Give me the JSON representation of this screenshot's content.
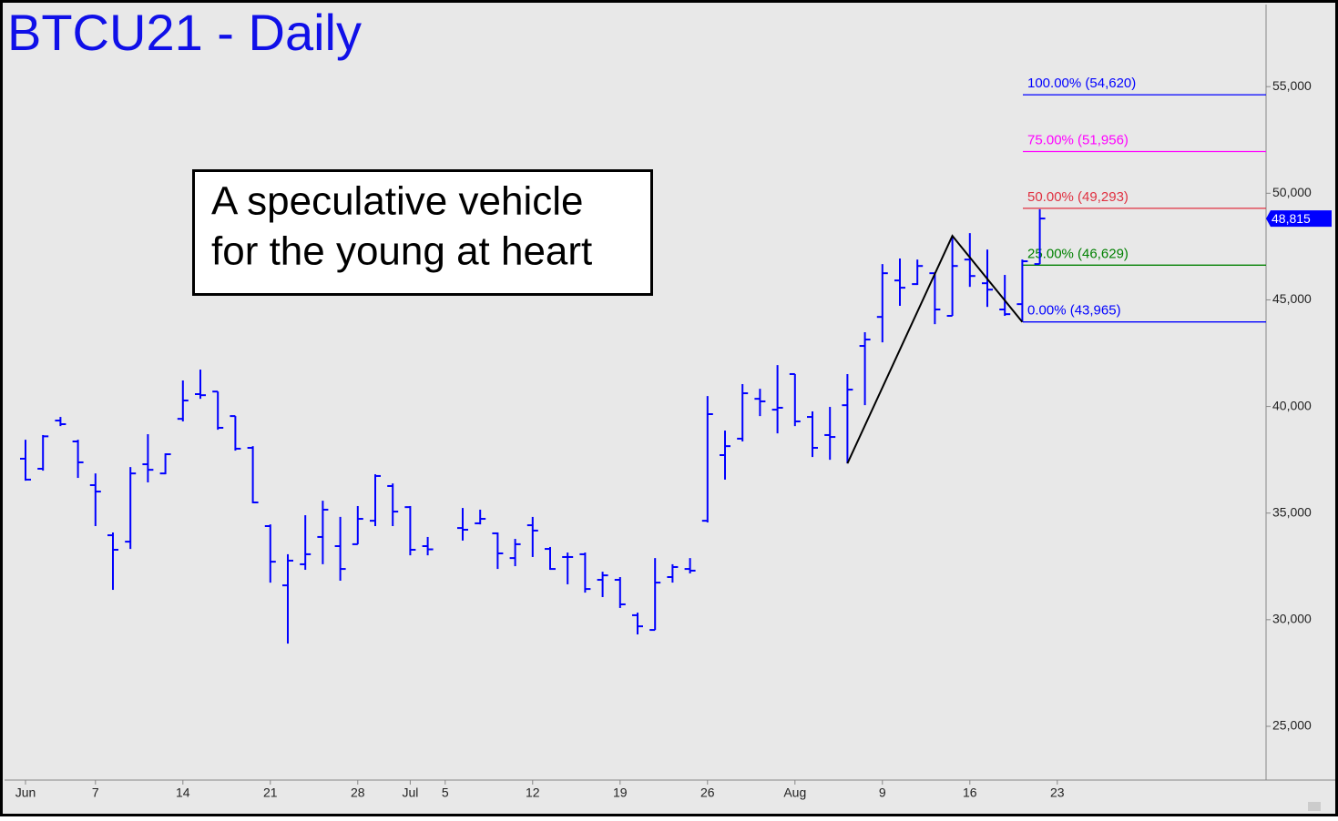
{
  "chart_data": {
    "type": "ohlc",
    "title": "BTCU21 - Daily",
    "annotation": [
      "A speculative vehicle",
      "for the young at heart"
    ],
    "color": "#0000ff",
    "categories": [
      "Jun",
      null,
      null,
      null,
      "7",
      null,
      null,
      null,
      null,
      "14",
      null,
      null,
      null,
      null,
      "21",
      null,
      null,
      null,
      null,
      "28",
      null,
      null,
      "Jul",
      null,
      "5",
      null,
      null,
      null,
      null,
      "12",
      null,
      null,
      null,
      null,
      "19",
      null,
      null,
      null,
      null,
      "26",
      null,
      null,
      null,
      null,
      "Aug",
      null,
      null,
      null,
      null,
      "9",
      null,
      null,
      null,
      null,
      "16",
      null,
      null,
      null,
      null,
      "23"
    ],
    "open": [
      37550,
      37080,
      39340,
      38360,
      36310,
      33960,
      33660,
      37290,
      36860,
      39420,
      40580,
      40700,
      39550,
      38060,
      34390,
      31610,
      32600,
      33880,
      33450,
      33540,
      34640,
      36270,
      35280,
      33450,
      null,
      34300,
      34520,
      34050,
      32890,
      34430,
      33320,
      32940,
      33070,
      31870,
      31870,
      30210,
      29520,
      32000,
      32380,
      34640,
      37720,
      38490,
      40360,
      39850,
      41520,
      39510,
      38660,
      40060,
      42840,
      44200,
      45910,
      45740,
      46250,
      44250,
      46890,
      45780,
      44550,
      44800,
      46680,
      null
    ],
    "high": [
      38440,
      38660,
      39510,
      38440,
      36860,
      34090,
      37160,
      38700,
      37800,
      41220,
      41730,
      40700,
      39550,
      38140,
      34470,
      33070,
      34900,
      35580,
      34820,
      35330,
      36820,
      36390,
      35330,
      33880,
      null,
      35240,
      35160,
      34090,
      33790,
      34820,
      33410,
      33150,
      33150,
      32250,
      32000,
      30330,
      32890,
      32600,
      32890,
      40490,
      38870,
      41050,
      40830,
      41940,
      41520,
      39770,
      39980,
      41520,
      43480,
      46680,
      46940,
      46890,
      46250,
      48000,
      48130,
      47360,
      46170,
      46890,
      49250,
      null
    ],
    "low": [
      36520,
      36990,
      39080,
      36650,
      34390,
      31400,
      33320,
      36440,
      36820,
      39300,
      40360,
      38910,
      37930,
      35460,
      31740,
      28880,
      32340,
      32600,
      31830,
      33540,
      34390,
      34390,
      33020,
      33020,
      null,
      33710,
      34470,
      32380,
      32510,
      32940,
      32340,
      31660,
      31270,
      31060,
      30550,
      29310,
      29520,
      31740,
      32170,
      34560,
      36570,
      38360,
      39550,
      38740,
      39080,
      37630,
      37500,
      37330,
      40060,
      43010,
      44720,
      45700,
      43860,
      44250,
      45610,
      44670,
      44250,
      43965,
      46680,
      null
    ],
    "close": [
      36570,
      38600,
      39170,
      37380,
      36010,
      33280,
      36860,
      37030,
      37760,
      40280,
      40530,
      39000,
      38020,
      35500,
      32720,
      32770,
      33070,
      35160,
      32380,
      34730,
      36740,
      35070,
      33280,
      33300,
      null,
      34220,
      34730,
      33110,
      33540,
      34180,
      32380,
      32940,
      31440,
      32080,
      30720,
      29690,
      31740,
      32470,
      32300,
      39640,
      38140,
      40620,
      40240,
      39940,
      39300,
      38060,
      38570,
      40790,
      43140,
      46250,
      45570,
      46590,
      44550,
      46590,
      46120,
      45480,
      44330,
      46810,
      48815,
      null
    ],
    "ylim": [
      22480,
      58850
    ],
    "yticks": [
      {
        "value": 25000,
        "label": "25,000"
      },
      {
        "value": 30000,
        "label": "30,000"
      },
      {
        "value": 35000,
        "label": "35,000"
      },
      {
        "value": 40000,
        "label": "40,000"
      },
      {
        "value": 45000,
        "label": "45,000"
      },
      {
        "value": 50000,
        "label": "50,000"
      },
      {
        "value": 55000,
        "label": "55,000"
      }
    ],
    "levels": [
      {
        "label": "100.00% (54,620)",
        "value": 54620,
        "color": "#0000ff"
      },
      {
        "label": "75.00% (51,956)",
        "value": 51956,
        "color": "#ff00ff"
      },
      {
        "label": "50.00% (49,293)",
        "value": 49293,
        "color": "#e03040"
      },
      {
        "label": "25.00% (46,629)",
        "value": 46629,
        "color": "#008000"
      },
      {
        "label": "0.00% (43,965)",
        "value": 43965,
        "color": "#0000ff"
      }
    ],
    "swing": {
      "x": [
        47,
        53,
        57
      ],
      "values": [
        37330,
        48000,
        43965
      ],
      "color": "#000000"
    },
    "last_price": {
      "value": 48815,
      "label": "48,815"
    }
  }
}
